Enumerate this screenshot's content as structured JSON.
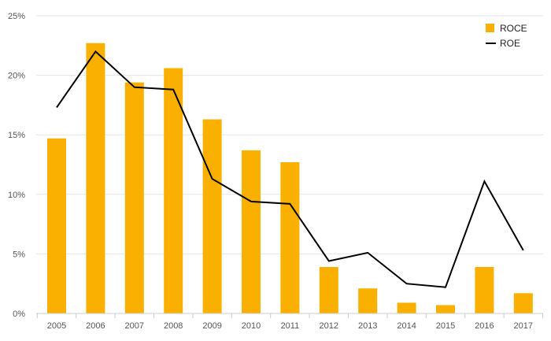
{
  "chart_data": {
    "type": "bar",
    "categories": [
      "2005",
      "2006",
      "2007",
      "2008",
      "2009",
      "2010",
      "2011",
      "2012",
      "2013",
      "2014",
      "2015",
      "2016",
      "2017"
    ],
    "series": [
      {
        "name": "ROCE",
        "type": "bar",
        "color": "#f9b000",
        "values": [
          14.7,
          22.7,
          19.4,
          20.6,
          16.3,
          13.7,
          12.7,
          3.9,
          2.1,
          0.9,
          0.7,
          3.9,
          1.7
        ]
      },
      {
        "name": "ROE",
        "type": "line",
        "color": "#000000",
        "values": [
          17.3,
          22.0,
          19.0,
          18.8,
          11.3,
          9.4,
          9.2,
          4.4,
          5.1,
          2.5,
          2.2,
          11.1,
          5.3
        ]
      }
    ],
    "ylim": [
      0,
      25
    ],
    "yticks": [
      "0%",
      "5%",
      "10%",
      "15%",
      "20%",
      "25%"
    ],
    "ytick_values": [
      0,
      5,
      10,
      15,
      20,
      25
    ],
    "grid": true,
    "legend_position": "top-right"
  }
}
